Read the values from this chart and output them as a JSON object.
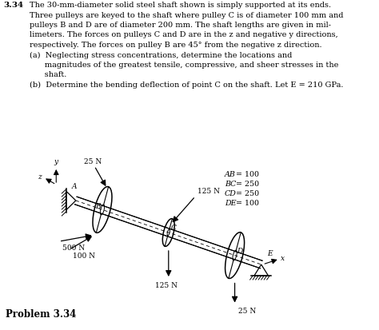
{
  "title_number": "3.34",
  "background_color": "#ffffff",
  "text_color": "#000000",
  "line1": "The 30-mm-diameter solid steel shaft shown is simply supported at its ends.",
  "line2": "Three pulleys are keyed to the shaft where pulley C is of diameter 100 mm and",
  "line3": "pulleys B and D are of diameter 200 mm. The shaft lengths are given in mil-",
  "line4": "limeters. The forces on pulleys C and D are in the z and negative y directions,",
  "line5": "respectively. The forces on pulley B are 45° from the negative z direction.",
  "line6a": "(a)  Neglecting stress concentrations, determine the locations and",
  "line6b": "      magnitudes of the greatest tensile, compressive, and sheer stresses in the",
  "line6c": "      shaft.",
  "line7": "(b)  Determine the bending deflection of point C on the shaft. Let E = 210 GPa.",
  "problem_label": "Problem 3.34",
  "dim_AB": "AB = 100",
  "dim_BC": "BC = 250",
  "dim_CD": "CD = 250",
  "dim_DE": "DE = 100",
  "f1": "25 N",
  "f2": "125 N",
  "f3": "100 N",
  "f4": "500 N",
  "f5": "125 N",
  "f6": "25 N",
  "font_size_text": 7.0,
  "font_size_label": 7.5,
  "font_size_diagram": 6.5
}
